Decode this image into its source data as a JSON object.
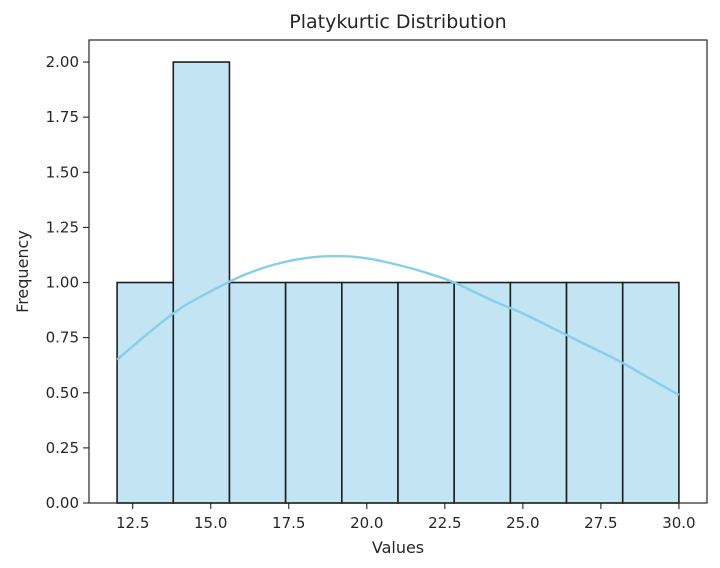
{
  "chart_data": {
    "type": "bar",
    "title": "Platykurtic Distribution",
    "xlabel": "Values",
    "ylabel": "Frequency",
    "bins": [
      {
        "x0": 12.0,
        "x1": 13.8,
        "count": 1
      },
      {
        "x0": 13.8,
        "x1": 15.6,
        "count": 2
      },
      {
        "x0": 15.6,
        "x1": 17.4,
        "count": 1
      },
      {
        "x0": 17.4,
        "x1": 19.2,
        "count": 1
      },
      {
        "x0": 19.2,
        "x1": 21.0,
        "count": 1
      },
      {
        "x0": 21.0,
        "x1": 22.8,
        "count": 1
      },
      {
        "x0": 22.8,
        "x1": 24.6,
        "count": 1
      },
      {
        "x0": 24.6,
        "x1": 26.4,
        "count": 1
      },
      {
        "x0": 26.4,
        "x1": 28.2,
        "count": 1
      },
      {
        "x0": 28.2,
        "x1": 30.0,
        "count": 1
      }
    ],
    "kde": {
      "x": [
        12.0,
        13.0,
        14.0,
        15.0,
        16.0,
        17.0,
        18.0,
        19.0,
        20.0,
        21.0,
        22.0,
        22.8,
        24.0,
        25.0,
        26.0,
        27.0,
        28.0,
        29.0,
        30.0
      ],
      "y": [
        0.65,
        0.77,
        0.88,
        0.96,
        1.03,
        1.08,
        1.11,
        1.12,
        1.11,
        1.08,
        1.04,
        1.0,
        0.92,
        0.86,
        0.79,
        0.72,
        0.65,
        0.57,
        0.49
      ]
    },
    "xlim": [
      11.1,
      30.9
    ],
    "ylim": [
      0,
      2.1
    ],
    "xticks": [
      12.5,
      15.0,
      17.5,
      20.0,
      22.5,
      25.0,
      27.5,
      30.0
    ],
    "xtick_labels": [
      "12.5",
      "15.0",
      "17.5",
      "20.0",
      "22.5",
      "25.0",
      "27.5",
      "30.0"
    ],
    "yticks": [
      0.0,
      0.25,
      0.5,
      0.75,
      1.0,
      1.25,
      1.5,
      1.75,
      2.0
    ],
    "ytick_labels": [
      "0.00",
      "0.25",
      "0.50",
      "0.75",
      "1.00",
      "1.25",
      "1.50",
      "1.75",
      "2.00"
    ],
    "grid": false,
    "colors": {
      "bar_fill": "#c3e4f3",
      "bar_edge": "#1f1f1f",
      "kde_line": "#87ceeb",
      "axis": "#262626"
    }
  }
}
